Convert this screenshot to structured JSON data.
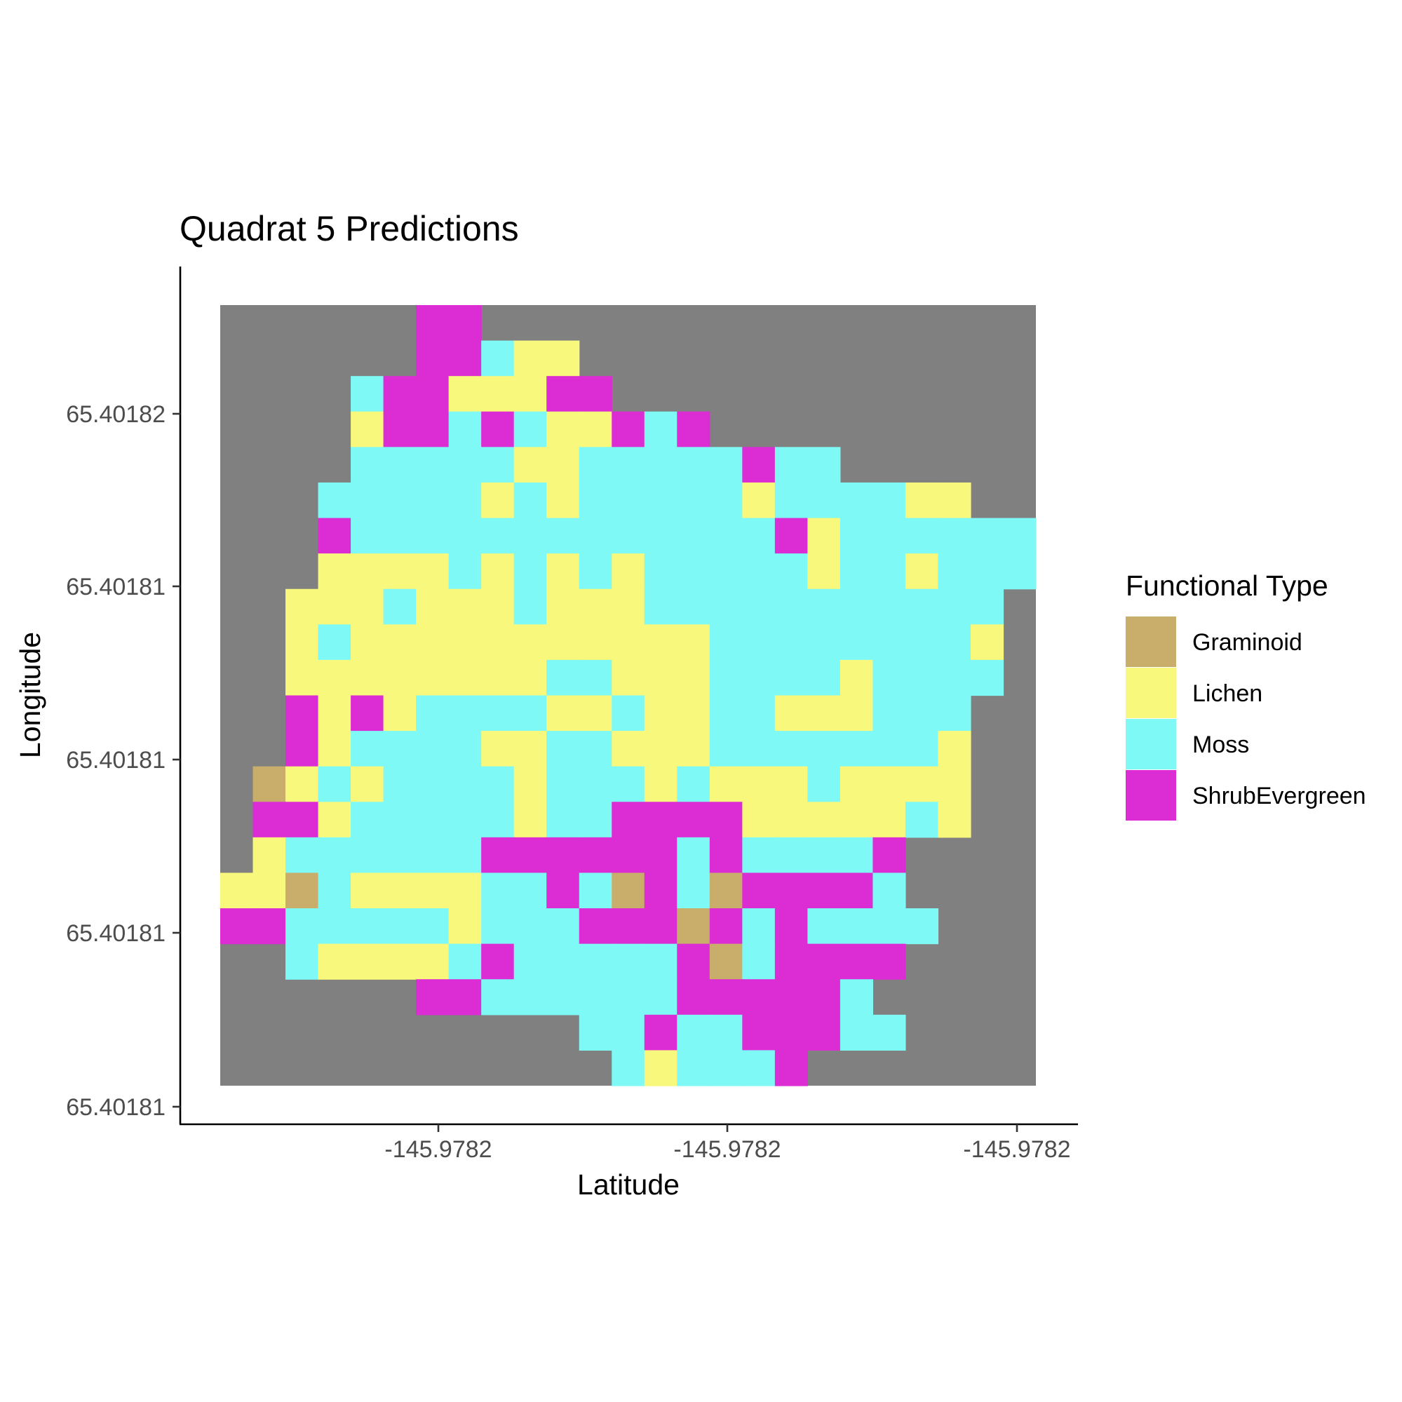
{
  "chart_data": {
    "type": "heatmap",
    "title": "Quadrat 5 Predictions",
    "xlabel": "Latitude",
    "ylabel": "Longitude",
    "x_tick_labels": [
      "-145.9782",
      "-145.9782",
      "-145.9782"
    ],
    "y_tick_labels": [
      "65.40182",
      "65.40181",
      "65.40181",
      "65.40181",
      "65.40181"
    ],
    "grid": false,
    "legend": {
      "title": "Functional Type",
      "placement": "right",
      "entries": [
        {
          "label": "Graminoid",
          "code": "G",
          "color": "#c8ae6a"
        },
        {
          "label": "Lichen",
          "code": "L",
          "color": "#f8f87c"
        },
        {
          "label": "Moss",
          "code": "M",
          "color": "#7ff9f5"
        },
        {
          "label": "ShrubEvergreen",
          "code": "S",
          "color": "#dc2cd3"
        }
      ]
    },
    "background_color": "#808080",
    "grid_rows": [
      "......SS.................",
      "......SSMLL..............",
      "....MSSLLLSS.............",
      "....LSSMSMLLSMS..........",
      "....MMMMMLLMMMMMSMM......",
      "...MMMMMLMLMMMMMLMMMMLL..",
      "...SMMMMMMMMMMMMMSLMMMMMM",
      "...LLLLMLMLMLMMMMMLMMLMMM",
      "..LLLMLLLMLLLMMMMMMMMMMM.",
      "..LMLLLLLLLLLLLMMMMMMMML.",
      "..LLLLLLLLMMLLLMMMMLMMMM.",
      "..SLSLMMMMLLMLLMMLLLMMM..",
      "..SLMMMMLLMMLLLMMMMMMML..",
      ".GLMLMMMMLMMMLMLLLMLLLL..",
      ".SSLMMMMMLMMSSSSLLLLLML..",
      ".LMMMMMMSSSSSSMSMMMMS....",
      "LLGMLLLLMMSMGSMGSSSSM....",
      "SSMMMMMLMMMSSSGSMSMMMM...",
      "..MLLLLMSMMMMMSGMSSSS....",
      "......SSMMMMMMSSSSSM.....",
      "...........MMSMMSSSMM....",
      "............MLMMMS......."
    ]
  }
}
